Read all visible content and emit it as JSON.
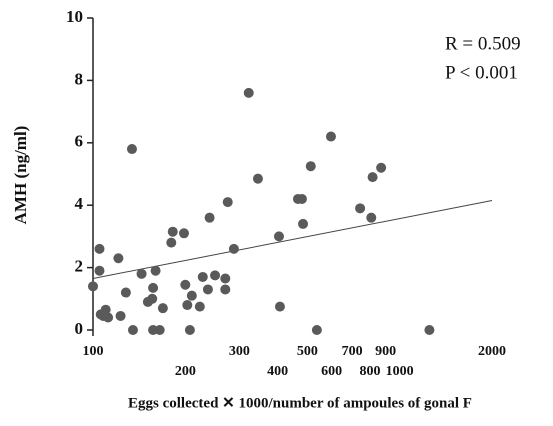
{
  "chart_data": {
    "type": "scatter",
    "x_label": "Eggs collected ✕ 1000/number of  ampoules of gonal F",
    "y_label": "AMH (ng/ml)",
    "annotations": [
      "R = 0.509",
      "P < 0.001"
    ],
    "x_scale": "log",
    "xlim": [
      100,
      2000
    ],
    "ylim": [
      0,
      10
    ],
    "xticks": [
      100,
      200,
      300,
      400,
      500,
      600,
      700,
      800,
      900,
      1000,
      2000
    ],
    "yticks": [
      0,
      2,
      4,
      6,
      8,
      10
    ],
    "color": "#5a5a5a",
    "x": [
      100,
      105,
      105,
      106,
      110,
      112,
      108,
      121,
      123,
      128,
      134,
      135,
      144,
      151,
      156,
      157,
      160,
      157,
      165,
      169,
      180,
      182,
      198,
      200,
      203,
      210,
      207,
      223,
      228,
      237,
      240,
      250,
      270,
      270,
      275,
      288,
      322,
      345,
      404,
      407,
      466,
      480,
      484,
      513,
      537,
      597,
      743,
      808,
      816,
      870,
      1250
    ],
    "values": [
      1.4,
      2.6,
      1.9,
      0.5,
      0.65,
      0.4,
      0.45,
      2.3,
      0.45,
      1.2,
      5.8,
      0,
      1.8,
      0.9,
      1.0,
      1.35,
      1.9,
      0,
      0,
      0.7,
      2.8,
      3.15,
      3.1,
      1.45,
      0.8,
      1.1,
      0,
      0.75,
      1.7,
      1.3,
      3.6,
      1.75,
      1.65,
      1.3,
      4.1,
      2.6,
      7.6,
      4.85,
      3.0,
      0.75,
      4.2,
      4.2,
      3.4,
      5.25,
      0,
      6.2,
      3.9,
      3.6,
      4.9,
      5.2,
      0
    ],
    "fit": {
      "x": [
        100,
        2000
      ],
      "values": [
        1.65,
        4.15
      ]
    }
  }
}
